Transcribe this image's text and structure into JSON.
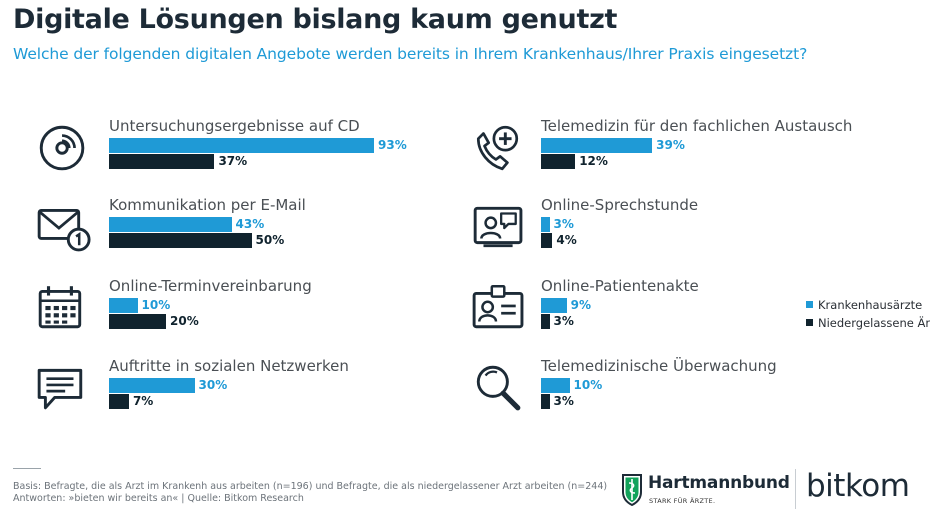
{
  "header": {
    "title": "Digitale Lösungen bislang kaum genutzt",
    "subtitle": "Welche der folgenden digitalen Angebote werden bereits in Ihrem Krankenhaus/Ihrer Praxis eingesetzt?"
  },
  "chart_data": {
    "type": "bar",
    "orientation": "horizontal",
    "title": "Digitale Lösungen bislang kaum genutzt",
    "subtitle": "Welche der folgenden digitalen Angebote werden bereits in Ihrem Krankenhaus/Ihrer Praxis eingesetzt?",
    "unit": "%",
    "xlim": [
      0,
      100
    ],
    "categories": [
      "Untersuchungsergebnisse auf CD",
      "Kommunikation per E-Mail",
      "Online-Terminvereinbarung",
      "Auftritte in sozialen Netzwerken",
      "Telemedizin für den fachlichen Austausch",
      "Online-Sprechstunde",
      "Online-Patientenakte",
      "Telemedizinische Überwachung"
    ],
    "icons": [
      "cd-icon",
      "email-icon",
      "calendar-icon",
      "chat-icon",
      "phone-plus-icon",
      "video-call-icon",
      "id-card-icon",
      "magnifier-icon"
    ],
    "series": [
      {
        "name": "Krankenhausärzte",
        "color": "#1f9ad6",
        "values": [
          93,
          43,
          10,
          30,
          39,
          3,
          9,
          10
        ],
        "labels": [
          "93%",
          "43%",
          "10%",
          "30%",
          "39%",
          "3%",
          "9%",
          "10%"
        ]
      },
      {
        "name": "Niedergelassene Ärzte",
        "color": "#10232e",
        "values": [
          37,
          50,
          20,
          7,
          12,
          4,
          3,
          3
        ],
        "labels": [
          "37%",
          "50%",
          "20%",
          "7%",
          "12%",
          "4%",
          "3%",
          "3%"
        ]
      }
    ],
    "legend": "right"
  },
  "footer": {
    "source_line1": "Basis: Befragte, die als Arzt im Krankenh aus arbeiten (n=196) und Befragte, die als niedergelassener Arzt arbeiten (n=244)",
    "source_line2": "Antworten: »bieten wir bereits an« | Quelle: Bitkom Research",
    "hartmannbund_name": "Hartmannbund",
    "hartmannbund_tagline": "STARK FÜR ÄRZTE.",
    "bitkom_name": "bitkom"
  },
  "colors": {
    "accent": "#1f9ad6",
    "dark": "#10232e",
    "title": "#1d2b37"
  }
}
